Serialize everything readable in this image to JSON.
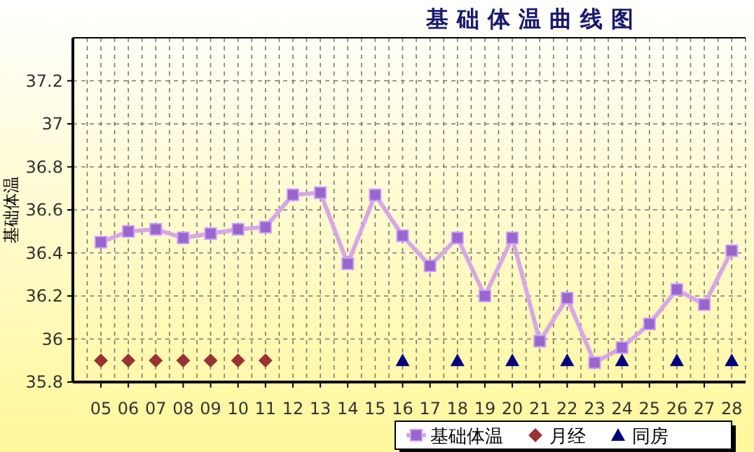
{
  "chart_data": {
    "type": "line",
    "title": "基础体温曲线图",
    "ylabel": "基础体温",
    "categories": [
      "05",
      "06",
      "07",
      "08",
      "09",
      "10",
      "11",
      "12",
      "13",
      "14",
      "15",
      "16",
      "17",
      "18",
      "19",
      "20",
      "21",
      "22",
      "23",
      "24",
      "25",
      "26",
      "27",
      "28"
    ],
    "series": [
      {
        "name": "基础体温",
        "color": "#9966cc",
        "marker": "square",
        "values": [
          36.45,
          36.5,
          36.51,
          36.47,
          36.49,
          36.51,
          36.52,
          36.67,
          36.68,
          36.35,
          36.67,
          36.48,
          36.34,
          36.47,
          36.2,
          36.47,
          35.99,
          36.19,
          35.89,
          35.96,
          36.07,
          36.23,
          36.16,
          36.41
        ]
      },
      {
        "name": "月经",
        "type": "scatter",
        "color": "#993333",
        "marker": "diamond",
        "values": [
          35.9,
          35.9,
          35.9,
          35.9,
          35.9,
          35.9,
          35.9,
          null,
          null,
          null,
          null,
          null,
          null,
          null,
          null,
          null,
          null,
          null,
          null,
          null,
          null,
          null,
          null,
          null
        ]
      },
      {
        "name": "同房",
        "type": "scatter",
        "color": "#000080",
        "marker": "triangle",
        "values": [
          null,
          null,
          null,
          null,
          null,
          null,
          null,
          null,
          null,
          null,
          null,
          35.9,
          null,
          35.9,
          null,
          35.9,
          null,
          35.9,
          null,
          35.9,
          null,
          35.9,
          null,
          35.9
        ]
      }
    ],
    "ylim": [
      35.8,
      37.4
    ],
    "yticks": [
      35.8,
      36,
      36.2,
      36.4,
      36.6,
      36.8,
      37,
      37.2
    ],
    "grid": true,
    "legend": "bottom right"
  }
}
